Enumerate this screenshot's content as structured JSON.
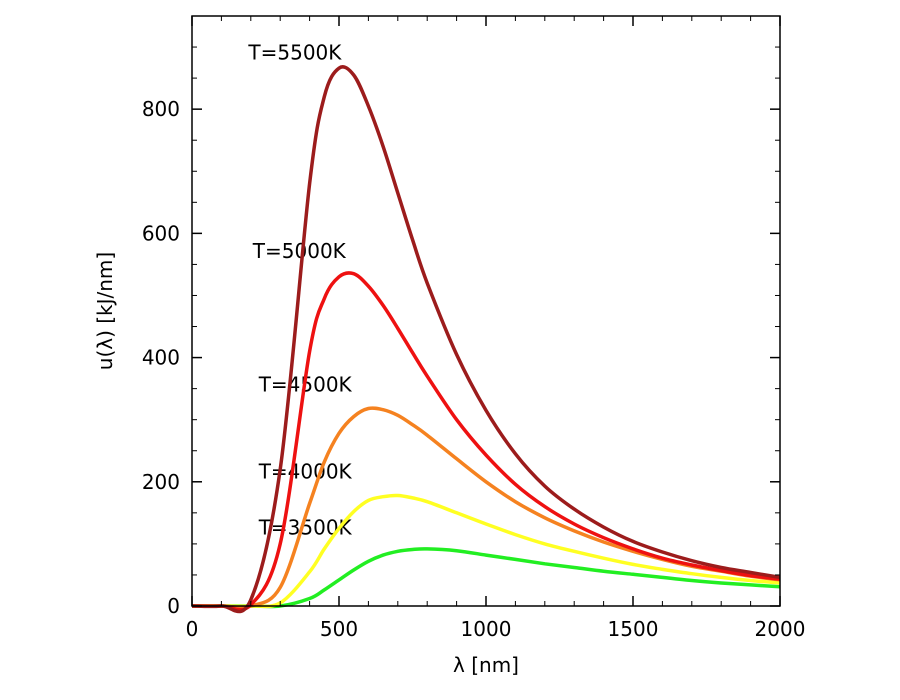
{
  "chart_data": {
    "type": "line",
    "xlabel": "λ [nm]",
    "ylabel": "u(λ)  [kJ/nm]",
    "xlim": [
      0,
      2000
    ],
    "ylim": [
      0,
      950
    ],
    "xticks": [
      0,
      500,
      1000,
      1500,
      2000
    ],
    "yticks": [
      0,
      200,
      400,
      600,
      800
    ],
    "x": [
      100,
      200,
      300,
      400,
      450,
      500,
      550,
      600,
      650,
      700,
      750,
      800,
      900,
      1000,
      1100,
      1200,
      1300,
      1400,
      1500,
      1600,
      1700,
      1800,
      1900,
      2000
    ],
    "series": [
      {
        "name": "T=5500K",
        "color": "#9c1c1c",
        "label_at": [
          350,
          880
        ],
        "values": [
          0,
          10,
          220,
          680,
          820,
          866,
          855,
          805,
          740,
          665,
          590,
          520,
          405,
          315,
          245,
          193,
          156,
          127,
          104,
          87,
          73,
          62,
          54,
          46
        ]
      },
      {
        "name": "T=5000K",
        "color": "#ee1111",
        "label_at": [
          365,
          560
        ],
        "values": [
          0,
          2,
          100,
          410,
          495,
          530,
          535,
          515,
          484,
          447,
          408,
          370,
          300,
          243,
          196,
          160,
          132,
          110,
          92,
          77,
          66,
          57,
          49,
          43
        ]
      },
      {
        "name": "T=4500K",
        "color": "#f58220",
        "label_at": [
          385,
          345
        ],
        "values": [
          0,
          0,
          30,
          165,
          232,
          278,
          305,
          318,
          316,
          307,
          292,
          275,
          237,
          200,
          168,
          142,
          121,
          103,
          88,
          75,
          64,
          56,
          48,
          42
        ]
      },
      {
        "name": "T=4000K",
        "color": "#ffff22",
        "label_at": [
          385,
          205
        ],
        "values": [
          0,
          0,
          5,
          55,
          92,
          125,
          152,
          170,
          176,
          178,
          174,
          168,
          150,
          132,
          115,
          100,
          88,
          77,
          67,
          59,
          52,
          46,
          41,
          37
        ]
      },
      {
        "name": "T=3500K",
        "color": "#22ee22",
        "label_at": [
          385,
          115
        ],
        "values": [
          0,
          0,
          0,
          12,
          26,
          42,
          58,
          72,
          82,
          88,
          91,
          92,
          89,
          82,
          75,
          68,
          62,
          56,
          51,
          46,
          41,
          37,
          34,
          31
        ]
      }
    ]
  }
}
